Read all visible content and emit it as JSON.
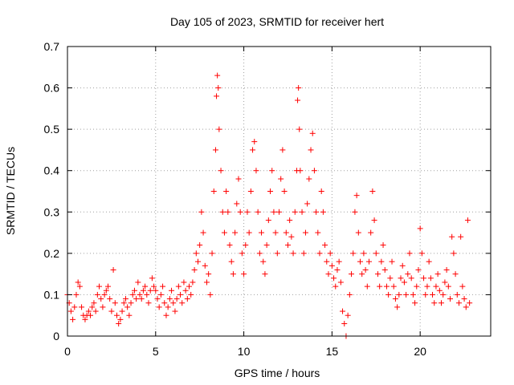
{
  "chart_data": {
    "type": "scatter",
    "title": "Day 105 of 2023, SRMTID for receiver hert",
    "xlabel": "GPS time / hours",
    "ylabel": "SRMTID / TECUs",
    "xlim": [
      0,
      24
    ],
    "ylim": [
      0,
      0.7
    ],
    "xticks": [
      0,
      5,
      10,
      15,
      20
    ],
    "yticks": [
      0,
      0.1,
      0.2,
      0.3,
      0.4,
      0.5,
      0.6,
      0.7
    ],
    "xtick_labels": [
      "0",
      "5",
      "10",
      "15",
      "20"
    ],
    "ytick_labels": [
      "0",
      "0.1",
      "0.2",
      "0.3",
      "0.4",
      "0.5",
      "0.6",
      "0.7"
    ],
    "grid": true,
    "marker": "+",
    "color": "#ff0000",
    "series": [
      {
        "name": "SRMTID",
        "points": [
          [
            0.0,
            0.1
          ],
          [
            0.1,
            0.08
          ],
          [
            0.2,
            0.06
          ],
          [
            0.3,
            0.04
          ],
          [
            0.4,
            0.07
          ],
          [
            0.5,
            0.1
          ],
          [
            0.6,
            0.13
          ],
          [
            0.7,
            0.12
          ],
          [
            0.8,
            0.07
          ],
          [
            0.9,
            0.05
          ],
          [
            1.0,
            0.04
          ],
          [
            1.1,
            0.05
          ],
          [
            1.2,
            0.06
          ],
          [
            1.3,
            0.05
          ],
          [
            1.4,
            0.07
          ],
          [
            1.5,
            0.08
          ],
          [
            1.6,
            0.06
          ],
          [
            1.7,
            0.1
          ],
          [
            1.8,
            0.12
          ],
          [
            1.9,
            0.09
          ],
          [
            2.0,
            0.07
          ],
          [
            2.1,
            0.1
          ],
          [
            2.2,
            0.11
          ],
          [
            2.3,
            0.12
          ],
          [
            2.4,
            0.09
          ],
          [
            2.5,
            0.06
          ],
          [
            2.6,
            0.16
          ],
          [
            2.7,
            0.08
          ],
          [
            2.8,
            0.05
          ],
          [
            2.9,
            0.03
          ],
          [
            3.0,
            0.04
          ],
          [
            3.1,
            0.06
          ],
          [
            3.2,
            0.08
          ],
          [
            3.3,
            0.09
          ],
          [
            3.4,
            0.07
          ],
          [
            3.5,
            0.05
          ],
          [
            3.6,
            0.08
          ],
          [
            3.7,
            0.1
          ],
          [
            3.8,
            0.11
          ],
          [
            3.9,
            0.09
          ],
          [
            4.0,
            0.13
          ],
          [
            4.1,
            0.1
          ],
          [
            4.2,
            0.09
          ],
          [
            4.3,
            0.11
          ],
          [
            4.4,
            0.12
          ],
          [
            4.5,
            0.1
          ],
          [
            4.6,
            0.08
          ],
          [
            4.7,
            0.11
          ],
          [
            4.8,
            0.14
          ],
          [
            4.9,
            0.12
          ],
          [
            5.0,
            0.11
          ],
          [
            5.1,
            0.09
          ],
          [
            5.2,
            0.07
          ],
          [
            5.3,
            0.1
          ],
          [
            5.4,
            0.12
          ],
          [
            5.5,
            0.08
          ],
          [
            5.6,
            0.05
          ],
          [
            5.7,
            0.07
          ],
          [
            5.8,
            0.09
          ],
          [
            5.9,
            0.11
          ],
          [
            6.0,
            0.08
          ],
          [
            6.1,
            0.06
          ],
          [
            6.2,
            0.09
          ],
          [
            6.3,
            0.12
          ],
          [
            6.4,
            0.1
          ],
          [
            6.5,
            0.08
          ],
          [
            6.6,
            0.13
          ],
          [
            6.7,
            0.11
          ],
          [
            6.8,
            0.09
          ],
          [
            6.9,
            0.12
          ],
          [
            7.0,
            0.1
          ],
          [
            7.1,
            0.13
          ],
          [
            7.2,
            0.16
          ],
          [
            7.3,
            0.2
          ],
          [
            7.4,
            0.18
          ],
          [
            7.5,
            0.22
          ],
          [
            7.6,
            0.3
          ],
          [
            7.7,
            0.25
          ],
          [
            7.8,
            0.17
          ],
          [
            7.9,
            0.13
          ],
          [
            8.0,
            0.15
          ],
          [
            8.1,
            0.1
          ],
          [
            8.2,
            0.2
          ],
          [
            8.3,
            0.35
          ],
          [
            8.4,
            0.45
          ],
          [
            8.45,
            0.58
          ],
          [
            8.5,
            0.63
          ],
          [
            8.55,
            0.6
          ],
          [
            8.6,
            0.5
          ],
          [
            8.7,
            0.4
          ],
          [
            8.8,
            0.3
          ],
          [
            8.9,
            0.25
          ],
          [
            9.0,
            0.35
          ],
          [
            9.1,
            0.3
          ],
          [
            9.2,
            0.22
          ],
          [
            9.3,
            0.18
          ],
          [
            9.4,
            0.15
          ],
          [
            9.5,
            0.25
          ],
          [
            9.6,
            0.32
          ],
          [
            9.7,
            0.38
          ],
          [
            9.8,
            0.3
          ],
          [
            9.9,
            0.2
          ],
          [
            10.0,
            0.15
          ],
          [
            10.1,
            0.22
          ],
          [
            10.2,
            0.3
          ],
          [
            10.3,
            0.25
          ],
          [
            10.4,
            0.35
          ],
          [
            10.5,
            0.45
          ],
          [
            10.6,
            0.47
          ],
          [
            10.7,
            0.4
          ],
          [
            10.8,
            0.3
          ],
          [
            10.9,
            0.2
          ],
          [
            11.0,
            0.25
          ],
          [
            11.1,
            0.18
          ],
          [
            11.2,
            0.15
          ],
          [
            11.3,
            0.22
          ],
          [
            11.4,
            0.28
          ],
          [
            11.5,
            0.35
          ],
          [
            11.6,
            0.4
          ],
          [
            11.7,
            0.3
          ],
          [
            11.8,
            0.25
          ],
          [
            11.9,
            0.2
          ],
          [
            12.0,
            0.3
          ],
          [
            12.1,
            0.38
          ],
          [
            12.2,
            0.45
          ],
          [
            12.3,
            0.35
          ],
          [
            12.4,
            0.25
          ],
          [
            12.5,
            0.22
          ],
          [
            12.6,
            0.28
          ],
          [
            12.7,
            0.24
          ],
          [
            12.8,
            0.2
          ],
          [
            12.9,
            0.3
          ],
          [
            13.0,
            0.4
          ],
          [
            13.05,
            0.57
          ],
          [
            13.1,
            0.6
          ],
          [
            13.15,
            0.5
          ],
          [
            13.2,
            0.4
          ],
          [
            13.3,
            0.3
          ],
          [
            13.4,
            0.2
          ],
          [
            13.5,
            0.25
          ],
          [
            13.6,
            0.32
          ],
          [
            13.7,
            0.38
          ],
          [
            13.8,
            0.45
          ],
          [
            13.9,
            0.49
          ],
          [
            14.0,
            0.4
          ],
          [
            14.1,
            0.3
          ],
          [
            14.2,
            0.25
          ],
          [
            14.3,
            0.2
          ],
          [
            14.4,
            0.35
          ],
          [
            14.5,
            0.3
          ],
          [
            14.6,
            0.22
          ],
          [
            14.7,
            0.18
          ],
          [
            14.8,
            0.15
          ],
          [
            14.9,
            0.2
          ],
          [
            15.0,
            0.17
          ],
          [
            15.1,
            0.14
          ],
          [
            15.2,
            0.12
          ],
          [
            15.3,
            0.16
          ],
          [
            15.4,
            0.18
          ],
          [
            15.5,
            0.13
          ],
          [
            15.6,
            0.06
          ],
          [
            15.7,
            0.03
          ],
          [
            15.8,
            0.0
          ],
          [
            15.9,
            0.05
          ],
          [
            16.0,
            0.1
          ],
          [
            16.1,
            0.15
          ],
          [
            16.2,
            0.2
          ],
          [
            16.3,
            0.3
          ],
          [
            16.4,
            0.34
          ],
          [
            16.5,
            0.25
          ],
          [
            16.6,
            0.18
          ],
          [
            16.7,
            0.15
          ],
          [
            16.8,
            0.2
          ],
          [
            16.9,
            0.16
          ],
          [
            17.0,
            0.12
          ],
          [
            17.1,
            0.18
          ],
          [
            17.2,
            0.25
          ],
          [
            17.3,
            0.35
          ],
          [
            17.4,
            0.28
          ],
          [
            17.5,
            0.2
          ],
          [
            17.6,
            0.15
          ],
          [
            17.7,
            0.12
          ],
          [
            17.8,
            0.18
          ],
          [
            17.9,
            0.22
          ],
          [
            18.0,
            0.16
          ],
          [
            18.1,
            0.12
          ],
          [
            18.2,
            0.1
          ],
          [
            18.3,
            0.14
          ],
          [
            18.4,
            0.18
          ],
          [
            18.5,
            0.12
          ],
          [
            18.6,
            0.09
          ],
          [
            18.7,
            0.07
          ],
          [
            18.8,
            0.1
          ],
          [
            18.9,
            0.14
          ],
          [
            19.0,
            0.17
          ],
          [
            19.1,
            0.13
          ],
          [
            19.2,
            0.1
          ],
          [
            19.3,
            0.15
          ],
          [
            19.4,
            0.2
          ],
          [
            19.5,
            0.14
          ],
          [
            19.6,
            0.1
          ],
          [
            19.7,
            0.08
          ],
          [
            19.8,
            0.12
          ],
          [
            19.9,
            0.16
          ],
          [
            20.0,
            0.26
          ],
          [
            20.1,
            0.2
          ],
          [
            20.2,
            0.14
          ],
          [
            20.3,
            0.1
          ],
          [
            20.4,
            0.12
          ],
          [
            20.5,
            0.18
          ],
          [
            20.6,
            0.14
          ],
          [
            20.7,
            0.1
          ],
          [
            20.8,
            0.08
          ],
          [
            20.9,
            0.12
          ],
          [
            21.0,
            0.15
          ],
          [
            21.1,
            0.11
          ],
          [
            21.2,
            0.08
          ],
          [
            21.3,
            0.1
          ],
          [
            21.4,
            0.13
          ],
          [
            21.5,
            0.16
          ],
          [
            21.6,
            0.12
          ],
          [
            21.7,
            0.09
          ],
          [
            21.8,
            0.24
          ],
          [
            21.9,
            0.2
          ],
          [
            22.0,
            0.15
          ],
          [
            22.1,
            0.1
          ],
          [
            22.2,
            0.08
          ],
          [
            22.3,
            0.24
          ],
          [
            22.4,
            0.12
          ],
          [
            22.5,
            0.09
          ],
          [
            22.6,
            0.07
          ],
          [
            22.7,
            0.28
          ],
          [
            22.8,
            0.08
          ]
        ]
      }
    ]
  }
}
